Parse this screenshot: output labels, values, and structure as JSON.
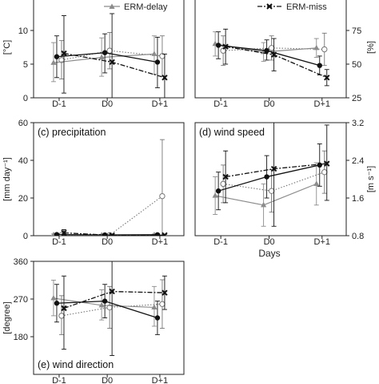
{
  "legend": {
    "delay_label": "ERM-delay",
    "miss_label": "ERM-miss",
    "placement": "top"
  },
  "shared": {
    "xlabel": "Days",
    "categories": [
      "D-1",
      "D0",
      "D+1"
    ]
  },
  "colors": {
    "hit": "#111111",
    "delay": "#8c8c8c",
    "miss": "#111111",
    "clim": "#777777",
    "axis": "#222222"
  },
  "chart_data": [
    {
      "id": "a",
      "type": "line",
      "title": "",
      "ylabel": "[°C]",
      "ylabel_side": "left",
      "categories": [
        "D-1",
        "D0",
        "D+1"
      ],
      "ylim": [
        0,
        15
      ],
      "yticks": [
        0,
        5,
        10
      ],
      "ytick_labels": [
        "0",
        "5",
        "10"
      ],
      "grid": false,
      "series": [
        {
          "name": "",
          "role": "hit",
          "values": [
            6.1,
            6.7,
            5.3
          ],
          "lower": [
            3.0,
            3.7,
            1.5
          ],
          "upper": [
            9.2,
            9.5,
            9.0
          ]
        },
        {
          "name": "ERM-delay",
          "role": "delay",
          "values": [
            5.2,
            6.0,
            6.5
          ],
          "lower": [
            2.4,
            3.2,
            3.5
          ],
          "upper": [
            8.2,
            8.9,
            9.2
          ]
        },
        {
          "name": "",
          "role": "clim",
          "values": [
            5.6,
            7.0,
            6.2
          ],
          "lower": [
            2.8,
            4.3,
            3.2
          ],
          "upper": [
            8.5,
            9.7,
            9.2
          ]
        },
        {
          "name": "ERM-miss",
          "role": "miss",
          "values": [
            6.6,
            5.3,
            3.0
          ],
          "lower": [
            0.7,
            -1.2,
            -0.6
          ],
          "upper": [
            12.2,
            12.5,
            6.5
          ]
        }
      ]
    },
    {
      "id": "b",
      "type": "line",
      "title": "",
      "ylabel": "[%]",
      "ylabel_side": "right",
      "categories": [
        "D-1",
        "D0",
        "D+1"
      ],
      "ylim": [
        25,
        100
      ],
      "yticks": [
        25,
        50,
        75
      ],
      "ytick_labels": [
        "25",
        "50",
        "75"
      ],
      "grid": false,
      "series": [
        {
          "name": "",
          "role": "hit",
          "values": [
            64,
            60,
            49
          ],
          "lower": [
            54,
            53,
            42
          ],
          "upper": [
            74,
            68,
            56
          ]
        },
        {
          "name": "ERM-delay",
          "role": "delay",
          "values": [
            65,
            59,
            62
          ],
          "lower": [
            56,
            52,
            55
          ],
          "upper": [
            74,
            66,
            69
          ]
        },
        {
          "name": "",
          "role": "clim",
          "values": [
            60,
            62,
            61
          ],
          "lower": [
            49,
            53,
            49
          ],
          "upper": [
            71,
            71,
            73
          ]
        },
        {
          "name": "ERM-miss",
          "role": "miss",
          "values": [
            63,
            57,
            40
          ],
          "lower": [
            50,
            45,
            34
          ],
          "upper": [
            76,
            69,
            46
          ]
        }
      ]
    },
    {
      "id": "c",
      "type": "line",
      "title": "(c) precipitation",
      "ylabel": "[mm day⁻¹]",
      "ylabel_side": "left",
      "categories": [
        "D-1",
        "D0",
        "D+1"
      ],
      "ylim": [
        0,
        60
      ],
      "yticks": [
        0,
        20,
        40,
        60
      ],
      "ytick_labels": [
        "0",
        "20",
        "40",
        "60"
      ],
      "grid": false,
      "series": [
        {
          "name": "",
          "role": "hit",
          "values": [
            0.6,
            0.4,
            0.5
          ],
          "lower": [
            0.0,
            0.0,
            0.0
          ],
          "upper": [
            1.2,
            0.8,
            1.0
          ]
        },
        {
          "name": "ERM-delay",
          "role": "delay",
          "values": [
            0.4,
            0.3,
            0.4
          ],
          "lower": [
            0.0,
            0.0,
            0.0
          ],
          "upper": [
            0.9,
            0.7,
            0.9
          ]
        },
        {
          "name": "",
          "role": "clim",
          "values": [
            0.3,
            0.3,
            21
          ],
          "lower": [
            0.0,
            0.0,
            0.0
          ],
          "upper": [
            0.7,
            0.6,
            51
          ]
        },
        {
          "name": "ERM-miss",
          "role": "miss",
          "values": [
            1.5,
            0.2,
            0.3
          ],
          "lower": [
            0.0,
            0.0,
            0.0
          ],
          "upper": [
            3.2,
            0.5,
            0.7
          ]
        }
      ]
    },
    {
      "id": "d",
      "type": "line",
      "title": "(d) wind speed",
      "ylabel": "[m s⁻¹]",
      "ylabel_side": "right",
      "categories": [
        "D-1",
        "D0",
        "D+1"
      ],
      "ylim": [
        0.8,
        3.2
      ],
      "yticks": [
        0.8,
        1.6,
        2.4,
        3.2
      ],
      "ytick_labels": [
        "0.8",
        "1.6",
        "2.4",
        "3.2"
      ],
      "grid": false,
      "series": [
        {
          "name": "",
          "role": "hit",
          "values": [
            1.75,
            2.05,
            2.3
          ],
          "lower": [
            1.35,
            1.6,
            1.85
          ],
          "upper": [
            2.15,
            2.5,
            2.75
          ]
        },
        {
          "name": "ERM-delay",
          "role": "delay",
          "values": [
            1.65,
            1.45,
            1.9
          ],
          "lower": [
            1.25,
            1.0,
            1.45
          ],
          "upper": [
            2.05,
            1.9,
            2.35
          ]
        },
        {
          "name": "",
          "role": "clim",
          "values": [
            1.9,
            1.75,
            2.15
          ],
          "lower": [
            1.5,
            1.3,
            1.7
          ],
          "upper": [
            2.3,
            2.2,
            2.6
          ]
        },
        {
          "name": "ERM-miss",
          "role": "miss",
          "values": [
            2.05,
            2.22,
            2.33
          ],
          "lower": [
            1.5,
            1.0,
            1.55
          ],
          "upper": [
            2.6,
            3.45,
            3.15
          ]
        }
      ]
    },
    {
      "id": "e",
      "type": "line",
      "title": "(e) wind direction",
      "ylabel": "[degree]",
      "ylabel_side": "left",
      "categories": [
        "D-1",
        "D0",
        "D+1"
      ],
      "ylim": [
        90,
        360
      ],
      "yticks": [
        180,
        270,
        360
      ],
      "ytick_labels": [
        "180",
        "270",
        "360"
      ],
      "grid": false,
      "series": [
        {
          "name": "",
          "role": "hit",
          "values": [
            260,
            265,
            225
          ],
          "lower": [
            215,
            225,
            185
          ],
          "upper": [
            305,
            305,
            265
          ]
        },
        {
          "name": "ERM-delay",
          "role": "delay",
          "values": [
            272,
            255,
            250
          ],
          "lower": [
            230,
            220,
            205
          ],
          "upper": [
            315,
            292,
            300
          ]
        },
        {
          "name": "",
          "role": "clim",
          "values": [
            230,
            250,
            258
          ],
          "lower": [
            185,
            200,
            200
          ],
          "upper": [
            278,
            300,
            316
          ]
        },
        {
          "name": "ERM-miss",
          "role": "miss",
          "values": [
            248,
            288,
            285
          ],
          "lower": [
            150,
            135,
            245
          ],
          "upper": [
            325,
            440,
            325
          ]
        }
      ]
    }
  ]
}
